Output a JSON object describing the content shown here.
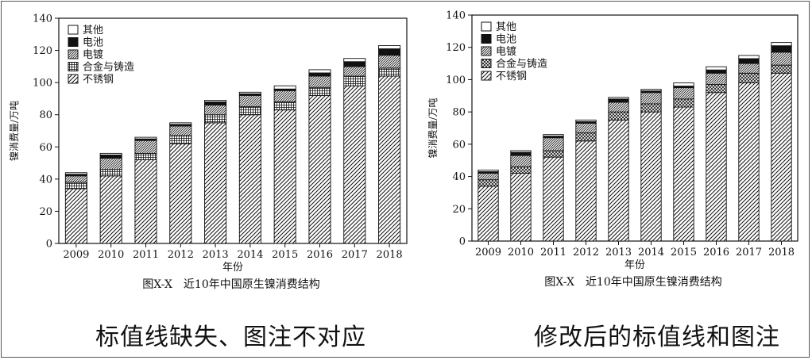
{
  "panels": [
    {
      "id": "left",
      "variant": "broken",
      "caption": "标值线缺失、图注不对应",
      "chart_data": {
        "type": "bar",
        "stacked": true,
        "title": "图X-X　近10年中国原生镍消费结构",
        "xlabel": "年份",
        "ylabel": "镍消费量/万吨",
        "ylim": [
          0,
          140
        ],
        "yticks": [
          0,
          20,
          40,
          60,
          80,
          100,
          120,
          140
        ],
        "grid": false,
        "legend_position": "top-left",
        "categories": [
          "2009",
          "2010",
          "2011",
          "2012",
          "2013",
          "2014",
          "2015",
          "2016",
          "2017",
          "2018"
        ],
        "series": [
          {
            "name": "不锈钢",
            "values": [
              34,
              42,
              52,
              62,
              75,
              80,
              83,
              92,
              98,
              104
            ]
          },
          {
            "name": "合金与铸造",
            "values": [
              4,
              4,
              4,
              5,
              5,
              5,
              5,
              5,
              6,
              5
            ]
          },
          {
            "name": "电镀",
            "values": [
              4,
              7,
              8,
              6,
              6,
              7,
              7,
              7,
              6,
              8
            ]
          },
          {
            "name": "电池",
            "values": [
              1,
              2,
              1,
              1,
              2,
              1,
              1,
              2,
              3,
              4
            ]
          },
          {
            "name": "其他",
            "values": [
              1,
              1,
              1,
              1,
              1,
              1,
              2,
              2,
              2,
              2
            ]
          }
        ]
      }
    },
    {
      "id": "right",
      "variant": "fixed",
      "caption": "修改后的标值线和图注",
      "chart_data": {
        "type": "bar",
        "stacked": true,
        "title": "图X-X　近10年中国原生镍消费结构",
        "xlabel": "年份",
        "ylabel": "镍消费量/万吨",
        "ylim": [
          0,
          140
        ],
        "yticks": [
          0,
          20,
          40,
          60,
          80,
          100,
          120,
          140
        ],
        "grid": false,
        "legend_position": "top-left",
        "categories": [
          "2009",
          "2010",
          "2011",
          "2012",
          "2013",
          "2014",
          "2015",
          "2016",
          "2017",
          "2018"
        ],
        "series": [
          {
            "name": "不锈钢",
            "values": [
              34,
              42,
              52,
              62,
              75,
              80,
              83,
              92,
              98,
              104
            ]
          },
          {
            "name": "合金与铸造",
            "values": [
              4,
              4,
              4,
              5,
              5,
              5,
              5,
              5,
              6,
              5
            ]
          },
          {
            "name": "电镀",
            "values": [
              4,
              7,
              8,
              6,
              6,
              7,
              7,
              7,
              6,
              8
            ]
          },
          {
            "name": "电池",
            "values": [
              1,
              2,
              1,
              1,
              2,
              1,
              1,
              2,
              3,
              4
            ]
          },
          {
            "name": "其他",
            "values": [
              1,
              1,
              1,
              1,
              1,
              1,
              2,
              2,
              2,
              2
            ]
          }
        ]
      }
    }
  ]
}
